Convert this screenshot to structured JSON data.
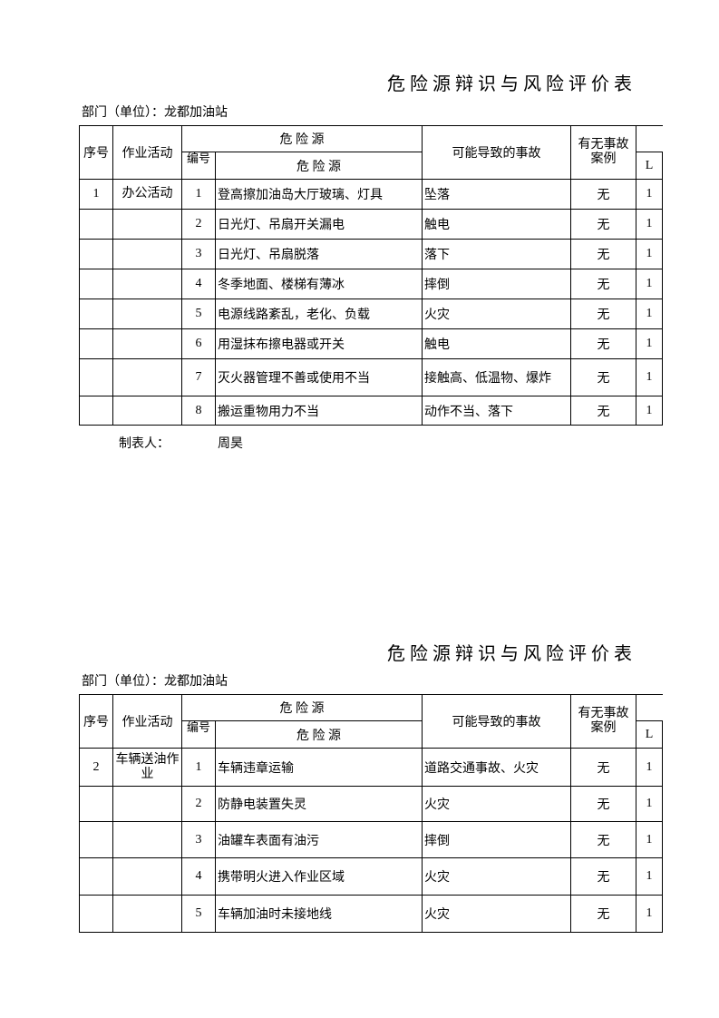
{
  "sheets": [
    {
      "title": "危险源辩识与风险评价表",
      "department": "部门（单位）：龙都加油站",
      "headers": {
        "seq": "序号",
        "activity": "作业活动",
        "hazard_group": "危 险 源",
        "code": "编号",
        "hazard": "危 险 源",
        "accident": "可能导致的事故",
        "case": "有无事故案例",
        "l": "L"
      },
      "seq": "1",
      "activity": "办公活动",
      "rows": [
        {
          "code": "1",
          "hazard": "登高擦加油岛大厅玻璃、灯具",
          "accident": "坠落",
          "case": "无",
          "l": "1"
        },
        {
          "code": "2",
          "hazard": "日光灯、吊扇开关漏电",
          "accident": "触电",
          "case": "无",
          "l": "1"
        },
        {
          "code": "3",
          "hazard": "日光灯、吊扇脱落",
          "accident": "落下",
          "case": "无",
          "l": "1"
        },
        {
          "code": "4",
          "hazard": "冬季地面、楼梯有薄冰",
          "accident": "摔倒",
          "case": "无",
          "l": "1"
        },
        {
          "code": "5",
          "hazard": "电源线路紊乱，老化、负载",
          "accident": "火灾",
          "case": "无",
          "l": "1"
        },
        {
          "code": "6",
          "hazard": "用湿抹布擦电器或开关",
          "accident": "触电",
          "case": "无",
          "l": "1"
        },
        {
          "code": "7",
          "hazard": "灭火器管理不善或使用不当",
          "accident": "接触高、低温物、爆炸",
          "case": "无",
          "l": "1"
        },
        {
          "code": "8",
          "hazard": "搬运重物用力不当",
          "accident": "动作不当、落下",
          "case": "无",
          "l": "1"
        }
      ],
      "maker_label": "制表人：",
      "maker_name": "周昊"
    },
    {
      "title": "危险源辩识与风险评价表",
      "department": "部门（单位）：龙都加油站",
      "headers": {
        "seq": "序号",
        "activity": "作业活动",
        "hazard_group": "危 险 源",
        "code": "编号",
        "hazard": "危 险 源",
        "accident": "可能导致的事故",
        "case": "有无事故案例",
        "l": "L"
      },
      "seq": "2",
      "activity": "车辆送油作业",
      "rows": [
        {
          "code": "1",
          "hazard": "车辆违章运输",
          "accident": "道路交通事故、火灾",
          "case": "无",
          "l": "1"
        },
        {
          "code": "2",
          "hazard": "防静电装置失灵",
          "accident": "火灾",
          "case": "无",
          "l": "1"
        },
        {
          "code": "3",
          "hazard": "油罐车表面有油污",
          "accident": "摔倒",
          "case": "无",
          "l": "1"
        },
        {
          "code": "4",
          "hazard": "携带明火进入作业区域",
          "accident": "火灾",
          "case": "无",
          "l": "1"
        },
        {
          "code": "5",
          "hazard": "车辆加油时未接地线",
          "accident": "火灾",
          "case": "无",
          "l": "1"
        }
      ]
    }
  ]
}
